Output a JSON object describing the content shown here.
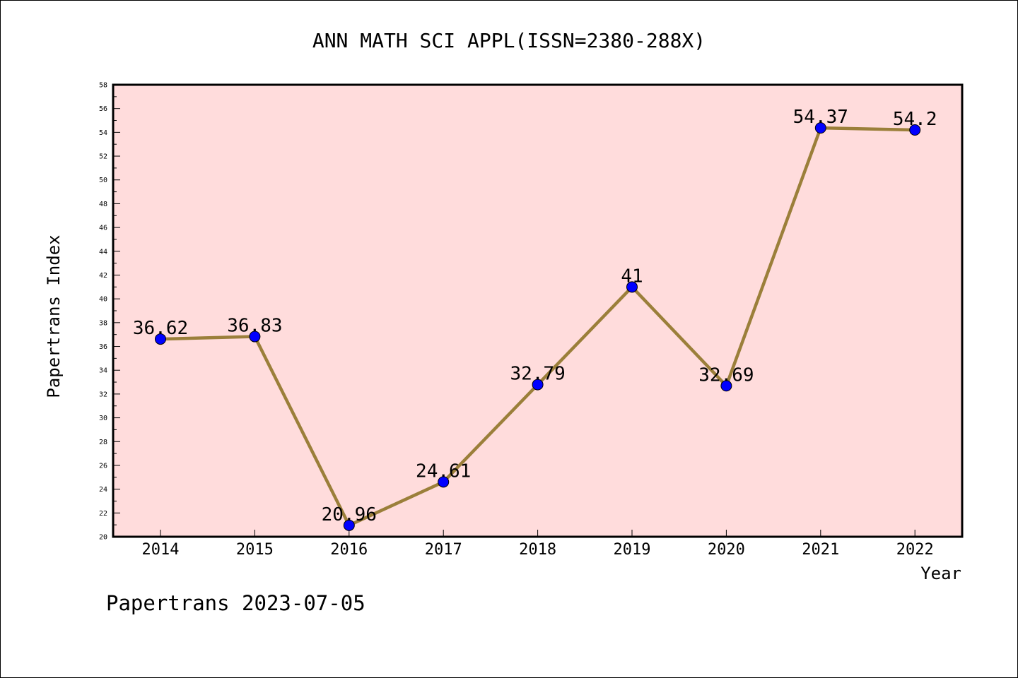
{
  "chart_data": {
    "type": "line",
    "title": "ANN MATH SCI APPL(ISSN=2380-288X)",
    "xlabel": "Year",
    "ylabel": "Papertrans Index",
    "categories": [
      "2014",
      "2015",
      "2016",
      "2017",
      "2018",
      "2019",
      "2020",
      "2021",
      "2022"
    ],
    "values": [
      36.62,
      36.83,
      20.96,
      24.61,
      32.79,
      41,
      32.69,
      54.37,
      54.2
    ],
    "data_labels": [
      "36.62",
      "36.83",
      "20.96",
      "24.61",
      "32.79",
      "41",
      "32.69",
      "54.37",
      "54.2"
    ],
    "y_ticks": [
      "20",
      "22",
      "24",
      "26",
      "28",
      "30",
      "32",
      "34",
      "36",
      "38",
      "40",
      "42",
      "44",
      "46",
      "48",
      "50",
      "52",
      "54",
      "56",
      "58"
    ],
    "ylim": [
      20,
      58
    ],
    "grid": false,
    "colors": {
      "plot_background": "#ffdcdc",
      "line": "#9b7f3a",
      "marker": "#0000ff"
    }
  },
  "footer": "Papertrans 2023-07-05"
}
